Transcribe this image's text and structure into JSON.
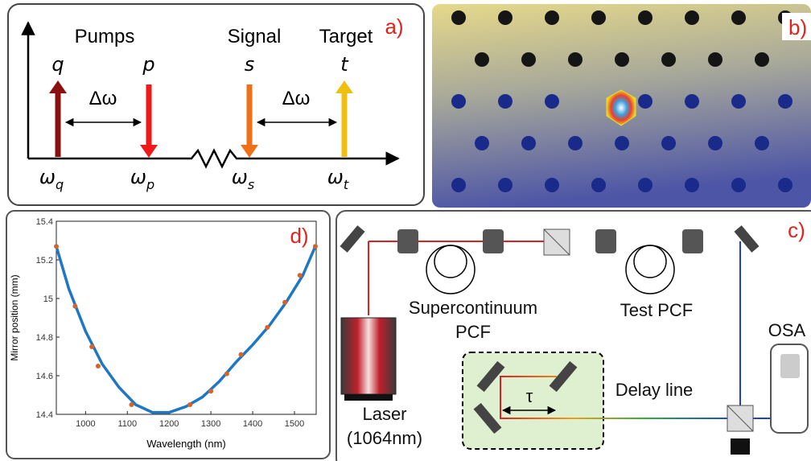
{
  "panel_a": {
    "label": "a)",
    "groups": [
      "Pumps",
      "Signal",
      "Target"
    ],
    "fields": [
      "q",
      "p",
      "s",
      "t"
    ],
    "frequencies": [
      {
        "base": "ω",
        "sub": "q"
      },
      {
        "base": "ω",
        "sub": "p"
      },
      {
        "base": "ω",
        "sub": "s"
      },
      {
        "base": "ω",
        "sub": "t"
      }
    ],
    "spacing": [
      "Δω",
      "Δω"
    ]
  },
  "panel_b": {
    "label": "b)"
  },
  "panel_c": {
    "label": "c)",
    "components": {
      "supercontinuum": [
        "Supercontinuum",
        "PCF"
      ],
      "test": "Test PCF",
      "osa": "OSA",
      "delay": "Delay line",
      "tau": "τ",
      "laser": [
        "Laser",
        "(1064nm)"
      ]
    }
  },
  "chart_data": {
    "type": "scatter",
    "label": "d)",
    "x_label": "Wavelength (nm)",
    "y_label": "Mirror position (mm)",
    "xlim": [
      930,
      1552
    ],
    "ylim": [
      14.4,
      15.4
    ],
    "xticks": [
      1000,
      1100,
      1200,
      1300,
      1400,
      1500
    ],
    "yticks": [
      14.4,
      14.6,
      14.8,
      15,
      15.2,
      15.4
    ],
    "series": [
      {
        "mode": "line",
        "color": "#1f77c4",
        "x": [
          930,
          960,
          1000,
          1040,
          1080,
          1120,
          1160,
          1200,
          1240,
          1280,
          1320,
          1360,
          1400,
          1440,
          1480,
          1520,
          1550
        ],
        "values": [
          15.27,
          15.05,
          14.83,
          14.66,
          14.54,
          14.45,
          14.41,
          14.41,
          14.44,
          14.49,
          14.57,
          14.67,
          14.76,
          14.86,
          14.98,
          15.12,
          15.27
        ]
      },
      {
        "mode": "markers",
        "color": "#d9622b",
        "x": [
          930,
          975,
          1015,
          1030,
          1110,
          1250,
          1300,
          1338,
          1372,
          1435,
          1477,
          1513,
          1550
        ],
        "values": [
          15.27,
          14.96,
          14.75,
          14.65,
          14.45,
          14.45,
          14.52,
          14.61,
          14.71,
          14.85,
          14.98,
          15.12,
          15.27
        ]
      }
    ]
  }
}
